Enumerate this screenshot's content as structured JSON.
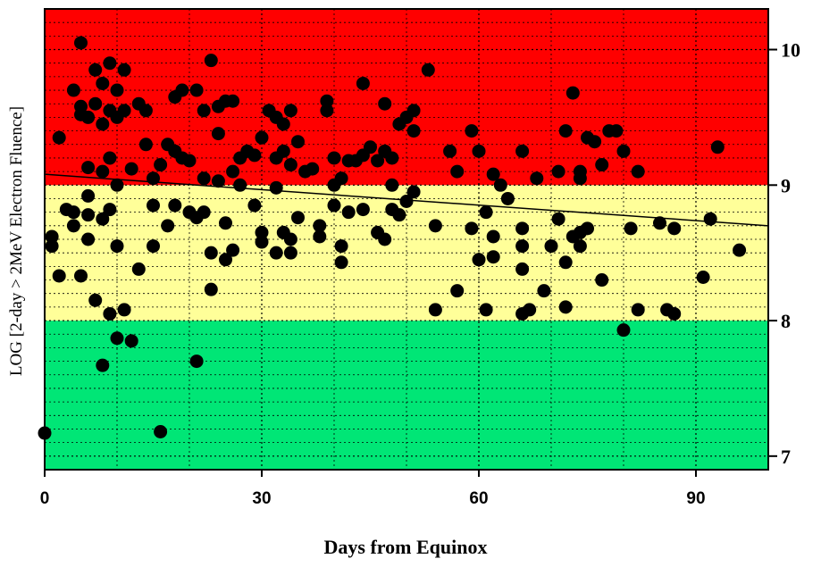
{
  "chart_data": {
    "type": "scatter",
    "title": "",
    "xlabel": "Days from Equinox",
    "ylabel": "LOG [2-day > 2MeV Electron Fluence]",
    "xlim": [
      0,
      100
    ],
    "ylim": [
      6.9,
      10.3
    ],
    "x_ticks": [
      0,
      30,
      60,
      90
    ],
    "x_tick_labels": [
      "0",
      "30",
      "60",
      "90"
    ],
    "y_ticks": [
      7,
      8,
      9,
      10
    ],
    "y_tick_labels": [
      "7",
      "8",
      "9",
      "10"
    ],
    "grid": true,
    "bands": [
      {
        "from": 6.9,
        "to": 8.0,
        "color": "#00e676"
      },
      {
        "from": 8.0,
        "to": 9.0,
        "color": "#ffff99"
      },
      {
        "from": 9.0,
        "to": 10.3,
        "color": "#ff0000"
      }
    ],
    "trend_line": {
      "x": [
        0,
        100
      ],
      "y": [
        9.08,
        8.7
      ]
    },
    "series": [
      {
        "color": "#000000",
        "points": [
          [
            0,
            7.17
          ],
          [
            1,
            8.62
          ],
          [
            1,
            8.55
          ],
          [
            2,
            9.35
          ],
          [
            2,
            8.33
          ],
          [
            3,
            8.82
          ],
          [
            4,
            9.7
          ],
          [
            4,
            8.8
          ],
          [
            4,
            8.7
          ],
          [
            5,
            10.05
          ],
          [
            5,
            9.58
          ],
          [
            5,
            9.52
          ],
          [
            5,
            8.33
          ],
          [
            6,
            9.5
          ],
          [
            6,
            9.13
          ],
          [
            6,
            8.92
          ],
          [
            6,
            8.78
          ],
          [
            6,
            8.6
          ],
          [
            7,
            9.85
          ],
          [
            7,
            9.6
          ],
          [
            7,
            8.15
          ],
          [
            8,
            9.75
          ],
          [
            8,
            9.45
          ],
          [
            8,
            9.1
          ],
          [
            8,
            8.75
          ],
          [
            8,
            7.67
          ],
          [
            9,
            9.9
          ],
          [
            9,
            9.55
          ],
          [
            9,
            9.2
          ],
          [
            9,
            8.82
          ],
          [
            9,
            8.05
          ],
          [
            10,
            9.7
          ],
          [
            10,
            9.5
          ],
          [
            10,
            9.0
          ],
          [
            10,
            8.55
          ],
          [
            10,
            7.87
          ],
          [
            11,
            9.85
          ],
          [
            11,
            9.55
          ],
          [
            11,
            8.08
          ],
          [
            12,
            9.12
          ],
          [
            12,
            7.85
          ],
          [
            13,
            9.6
          ],
          [
            13,
            8.38
          ],
          [
            14,
            9.55
          ],
          [
            14,
            9.3
          ],
          [
            15,
            9.05
          ],
          [
            15,
            8.85
          ],
          [
            15,
            8.55
          ],
          [
            16,
            9.15
          ],
          [
            16,
            7.18
          ],
          [
            17,
            9.3
          ],
          [
            17,
            8.7
          ],
          [
            18,
            9.65
          ],
          [
            18,
            9.25
          ],
          [
            18,
            8.85
          ],
          [
            19,
            9.7
          ],
          [
            19,
            9.2
          ],
          [
            20,
            9.18
          ],
          [
            20,
            8.8
          ],
          [
            21,
            9.7
          ],
          [
            21,
            8.76
          ],
          [
            21,
            7.7
          ],
          [
            22,
            9.55
          ],
          [
            22,
            9.05
          ],
          [
            22,
            8.8
          ],
          [
            23,
            9.92
          ],
          [
            23,
            8.5
          ],
          [
            23,
            8.23
          ],
          [
            24,
            9.58
          ],
          [
            24,
            9.38
          ],
          [
            24,
            9.03
          ],
          [
            25,
            9.62
          ],
          [
            25,
            8.72
          ],
          [
            25,
            8.45
          ],
          [
            26,
            9.62
          ],
          [
            26,
            9.1
          ],
          [
            26,
            8.52
          ],
          [
            27,
            9.2
          ],
          [
            27,
            9.0
          ],
          [
            28,
            9.25
          ],
          [
            29,
            9.22
          ],
          [
            29,
            8.85
          ],
          [
            30,
            9.35
          ],
          [
            30,
            8.65
          ],
          [
            30,
            8.58
          ],
          [
            31,
            9.55
          ],
          [
            32,
            9.5
          ],
          [
            32,
            9.2
          ],
          [
            32,
            8.98
          ],
          [
            32,
            8.5
          ],
          [
            33,
            9.45
          ],
          [
            33,
            9.25
          ],
          [
            33,
            8.65
          ],
          [
            34,
            9.55
          ],
          [
            34,
            9.15
          ],
          [
            34,
            8.6
          ],
          [
            34,
            8.5
          ],
          [
            35,
            9.32
          ],
          [
            35,
            8.76
          ],
          [
            36,
            9.1
          ],
          [
            37,
            9.12
          ],
          [
            38,
            8.7
          ],
          [
            38,
            8.62
          ],
          [
            39,
            9.62
          ],
          [
            39,
            9.55
          ],
          [
            40,
            9.2
          ],
          [
            40,
            9.0
          ],
          [
            40,
            8.85
          ],
          [
            41,
            9.05
          ],
          [
            41,
            8.55
          ],
          [
            41,
            8.43
          ],
          [
            42,
            9.18
          ],
          [
            42,
            8.8
          ],
          [
            43,
            9.18
          ],
          [
            44,
            9.75
          ],
          [
            44,
            9.22
          ],
          [
            44,
            8.82
          ],
          [
            45,
            9.28
          ],
          [
            46,
            9.18
          ],
          [
            46,
            8.65
          ],
          [
            47,
            9.6
          ],
          [
            47,
            9.25
          ],
          [
            47,
            8.6
          ],
          [
            48,
            9.2
          ],
          [
            48,
            9.0
          ],
          [
            48,
            8.82
          ],
          [
            49,
            9.45
          ],
          [
            49,
            8.78
          ],
          [
            50,
            9.5
          ],
          [
            50,
            8.88
          ],
          [
            51,
            9.55
          ],
          [
            51,
            9.4
          ],
          [
            51,
            8.95
          ],
          [
            53,
            9.85
          ],
          [
            54,
            8.7
          ],
          [
            54,
            8.08
          ],
          [
            56,
            9.25
          ],
          [
            57,
            9.1
          ],
          [
            57,
            8.22
          ],
          [
            59,
            9.4
          ],
          [
            59,
            8.68
          ],
          [
            60,
            9.25
          ],
          [
            60,
            8.45
          ],
          [
            61,
            8.8
          ],
          [
            61,
            8.08
          ],
          [
            62,
            9.08
          ],
          [
            62,
            8.62
          ],
          [
            62,
            8.47
          ],
          [
            63,
            9.0
          ],
          [
            64,
            8.9
          ],
          [
            66,
            9.25
          ],
          [
            66,
            8.68
          ],
          [
            66,
            8.55
          ],
          [
            66,
            8.38
          ],
          [
            66,
            8.05
          ],
          [
            67,
            8.08
          ],
          [
            68,
            9.05
          ],
          [
            69,
            8.22
          ],
          [
            70,
            8.55
          ],
          [
            71,
            9.1
          ],
          [
            71,
            8.75
          ],
          [
            72,
            9.4
          ],
          [
            72,
            8.43
          ],
          [
            72,
            8.1
          ],
          [
            73,
            9.68
          ],
          [
            73,
            8.62
          ],
          [
            74,
            9.1
          ],
          [
            74,
            9.05
          ],
          [
            74,
            8.65
          ],
          [
            74,
            8.55
          ],
          [
            75,
            9.35
          ],
          [
            75,
            8.68
          ],
          [
            76,
            9.32
          ],
          [
            77,
            9.15
          ],
          [
            77,
            8.3
          ],
          [
            78,
            9.4
          ],
          [
            79,
            9.4
          ],
          [
            80,
            9.25
          ],
          [
            80,
            7.93
          ],
          [
            81,
            8.68
          ],
          [
            82,
            9.1
          ],
          [
            82,
            8.08
          ],
          [
            85,
            8.72
          ],
          [
            86,
            8.08
          ],
          [
            87,
            8.68
          ],
          [
            87,
            8.05
          ],
          [
            91,
            8.32
          ],
          [
            92,
            8.75
          ],
          [
            93,
            9.28
          ],
          [
            96,
            8.52
          ]
        ]
      }
    ]
  }
}
